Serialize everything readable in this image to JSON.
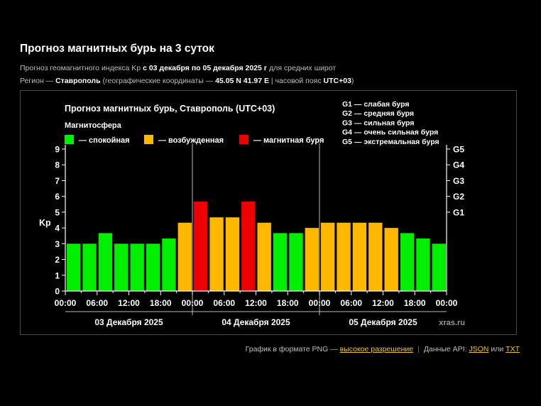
{
  "page": {
    "title": "Прогноз магнитных бурь на 3 суток",
    "line1": {
      "prefix": "Прогноз геомагнитного индекса Kp ",
      "range": "с 03 декабря по 05 декабря 2025 г",
      "suffix": " для средних широт"
    },
    "line2": {
      "prefix": "Регион — ",
      "region": "Ставрополь",
      "mid": " (географические координаты — ",
      "coords": "45.05 N 41.97 E",
      "tz_label": " | часовой пояс ",
      "tz": "UTC+03",
      "end": ")"
    }
  },
  "footer": {
    "text1": "График в формате PNG — ",
    "link_hires": "высокое разрешение",
    "separator": "|",
    "text2": "Данные API: ",
    "link_json": "JSON",
    "or": " или ",
    "link_txt": "TXT"
  },
  "chart_data": {
    "type": "bar",
    "title": "Прогноз магнитных бурь, Ставрополь (UTC+03)",
    "legend_title": "Магнитосфера",
    "legend": [
      {
        "label": "— спокойная",
        "color": "#00ee00"
      },
      {
        "label": "— возбужденная",
        "color": "#ffb800"
      },
      {
        "label": "— магнитная буря",
        "color": "#ee0000"
      }
    ],
    "storm_levels_legend": [
      "G1 — слабая буря",
      "G2 — средняя буря",
      "G3 — сильная буря",
      "G4 — очень сильная буря",
      "G5 — экстремальная буря"
    ],
    "ylabel": "Kp",
    "ylim": [
      0,
      9
    ],
    "y_ticks": [
      "0",
      "1",
      "2",
      "3",
      "4",
      "5",
      "6",
      "7",
      "8",
      "9"
    ],
    "right_ticks": [
      {
        "label": "G1",
        "value": 5
      },
      {
        "label": "G2",
        "value": 6
      },
      {
        "label": "G3",
        "value": 7
      },
      {
        "label": "G4",
        "value": 8
      },
      {
        "label": "G5",
        "value": 9
      }
    ],
    "x_tick_labels": [
      "00:00",
      "06:00",
      "12:00",
      "18:00",
      "00:00",
      "06:00",
      "12:00",
      "18:00",
      "00:00",
      "06:00",
      "12:00",
      "18:00",
      "00:00"
    ],
    "days": [
      "03 Декабря 2025",
      "04 Декабря 2025",
      "05 Декабря 2025"
    ],
    "values": [
      3,
      3,
      3.67,
      3,
      3,
      3,
      3.33,
      4.33,
      5.67,
      4.67,
      4.67,
      5.67,
      4.33,
      3.67,
      3.67,
      4,
      4.33,
      4.33,
      4.33,
      4.33,
      4,
      3.67,
      3.33,
      3
    ],
    "colors": {
      "calm": "#00ee00",
      "active": "#ffb800",
      "storm": "#ee0000",
      "background": "#000000",
      "text": "#ffffff"
    },
    "grid": false,
    "watermark": "xras.ru"
  }
}
